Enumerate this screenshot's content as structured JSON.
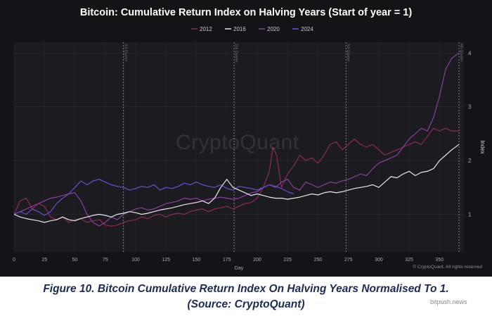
{
  "chart_data": {
    "type": "line",
    "title": "Bitcoin: Cumulative Return Index on Halving Years (Start of year = 1)",
    "xlabel": "Day",
    "ylabel": "Index",
    "xlim": [
      0,
      370
    ],
    "ylim": [
      0.3,
      4.2
    ],
    "x_ticks": [
      0,
      25,
      50,
      75,
      100,
      125,
      150,
      175,
      200,
      225,
      250,
      275,
      300,
      325,
      350
    ],
    "y_ticks": [
      1,
      2,
      3,
      4
    ],
    "grid": true,
    "legend_position": "top-center",
    "quarter_markers": [
      {
        "day": 90,
        "label": "3rd Quarter"
      },
      {
        "day": 181,
        "label": "2nd Quarter"
      },
      {
        "day": 273,
        "label": "3rd Quarter"
      },
      {
        "day": 366,
        "label": "4th Quarter"
      }
    ],
    "series": [
      {
        "name": "2012",
        "color": "#8b2a5a",
        "x": [
          0,
          5,
          10,
          15,
          20,
          25,
          30,
          35,
          40,
          45,
          50,
          55,
          60,
          65,
          70,
          75,
          80,
          85,
          90,
          95,
          100,
          105,
          110,
          115,
          120,
          125,
          130,
          135,
          140,
          145,
          150,
          155,
          160,
          165,
          170,
          175,
          180,
          185,
          190,
          195,
          200,
          205,
          210,
          213,
          216,
          220,
          225,
          230,
          235,
          240,
          245,
          250,
          255,
          260,
          265,
          270,
          275,
          280,
          285,
          290,
          295,
          300,
          305,
          310,
          315,
          320,
          325,
          330,
          335,
          340,
          345,
          350,
          355,
          360,
          366
        ],
        "y": [
          1.0,
          1.25,
          1.3,
          1.1,
          1.2,
          1.15,
          0.95,
          0.9,
          0.95,
          0.85,
          0.9,
          0.92,
          0.85,
          0.88,
          0.9,
          0.8,
          0.78,
          0.8,
          0.85,
          0.88,
          0.9,
          0.95,
          0.92,
          0.98,
          1.0,
          0.95,
          1.0,
          1.02,
          1.0,
          1.05,
          1.08,
          1.1,
          1.05,
          1.1,
          1.12,
          1.15,
          1.1,
          1.15,
          1.2,
          1.22,
          1.3,
          1.5,
          1.8,
          2.25,
          2.1,
          1.5,
          1.75,
          1.9,
          2.1,
          2.0,
          2.05,
          1.95,
          2.1,
          2.3,
          2.35,
          2.2,
          2.3,
          2.4,
          2.3,
          2.25,
          2.3,
          2.2,
          2.1,
          2.15,
          2.2,
          2.25,
          2.3,
          2.35,
          2.3,
          2.45,
          2.6,
          2.55,
          2.6,
          2.55,
          2.55
        ]
      },
      {
        "name": "2016",
        "color": "#e8e8ea",
        "x": [
          0,
          5,
          10,
          15,
          20,
          25,
          30,
          35,
          40,
          45,
          50,
          55,
          60,
          65,
          70,
          75,
          80,
          85,
          90,
          95,
          100,
          105,
          110,
          115,
          120,
          125,
          130,
          135,
          140,
          145,
          150,
          155,
          160,
          165,
          170,
          175,
          180,
          185,
          190,
          195,
          200,
          205,
          210,
          215,
          220,
          225,
          230,
          235,
          240,
          245,
          250,
          255,
          260,
          265,
          270,
          275,
          280,
          285,
          290,
          295,
          300,
          305,
          310,
          315,
          320,
          325,
          330,
          335,
          340,
          345,
          350,
          355,
          360,
          366
        ],
        "y": [
          1.0,
          0.95,
          0.92,
          0.9,
          0.88,
          0.85,
          0.88,
          0.9,
          0.95,
          0.9,
          0.88,
          0.92,
          0.95,
          0.98,
          1.0,
          0.98,
          0.95,
          1.0,
          1.02,
          1.05,
          1.03,
          1.0,
          1.02,
          1.05,
          1.08,
          1.1,
          1.12,
          1.15,
          1.18,
          1.2,
          1.22,
          1.25,
          1.2,
          1.3,
          1.5,
          1.65,
          1.5,
          1.45,
          1.4,
          1.35,
          1.38,
          1.35,
          1.32,
          1.3,
          1.3,
          1.28,
          1.3,
          1.32,
          1.35,
          1.38,
          1.36,
          1.4,
          1.42,
          1.4,
          1.42,
          1.45,
          1.48,
          1.5,
          1.52,
          1.55,
          1.5,
          1.6,
          1.7,
          1.68,
          1.75,
          1.8,
          1.72,
          1.78,
          1.8,
          1.85,
          2.0,
          2.1,
          2.2,
          2.3
        ]
      },
      {
        "name": "2020",
        "color": "#8a3f9e",
        "x": [
          0,
          5,
          10,
          15,
          20,
          25,
          30,
          35,
          40,
          45,
          50,
          55,
          60,
          65,
          70,
          75,
          80,
          85,
          90,
          95,
          100,
          105,
          110,
          115,
          120,
          125,
          130,
          135,
          140,
          145,
          150,
          155,
          160,
          165,
          170,
          175,
          180,
          185,
          190,
          195,
          200,
          205,
          210,
          215,
          220,
          225,
          230,
          235,
          240,
          245,
          250,
          255,
          260,
          265,
          270,
          275,
          280,
          285,
          290,
          295,
          300,
          305,
          310,
          315,
          320,
          325,
          330,
          335,
          340,
          345,
          350,
          355,
          360,
          366
        ],
        "y": [
          1.0,
          1.05,
          1.1,
          1.15,
          1.2,
          1.25,
          1.3,
          1.32,
          1.35,
          1.38,
          1.4,
          1.25,
          1.0,
          0.85,
          0.78,
          0.85,
          0.95,
          0.9,
          1.0,
          1.05,
          1.1,
          1.12,
          1.08,
          1.1,
          1.15,
          1.2,
          1.22,
          1.25,
          1.3,
          1.28,
          1.3,
          1.25,
          1.28,
          1.3,
          1.32,
          1.3,
          1.28,
          1.3,
          1.35,
          1.4,
          1.42,
          1.5,
          1.55,
          1.5,
          1.6,
          1.65,
          1.5,
          1.45,
          1.6,
          1.55,
          1.5,
          1.55,
          1.6,
          1.58,
          1.62,
          1.65,
          1.7,
          1.75,
          1.72,
          1.85,
          1.95,
          2.0,
          2.05,
          2.1,
          2.25,
          2.4,
          2.5,
          2.6,
          2.55,
          2.8,
          3.2,
          3.7,
          3.9,
          4.0
        ]
      },
      {
        "name": "2024",
        "color": "#6a4fd0",
        "x": [
          0,
          5,
          10,
          15,
          20,
          25,
          30,
          35,
          40,
          45,
          50,
          55,
          60,
          65,
          70,
          75,
          80,
          85,
          90,
          95,
          100,
          105,
          110,
          115,
          120,
          125,
          130,
          135,
          140,
          145,
          150,
          155,
          160,
          165,
          170,
          175,
          180,
          185,
          190,
          195,
          200,
          205,
          210,
          215,
          220,
          225,
          230
        ],
        "y": [
          1.0,
          1.05,
          1.0,
          1.1,
          1.05,
          0.98,
          1.05,
          1.2,
          1.3,
          1.38,
          1.5,
          1.62,
          1.55,
          1.62,
          1.65,
          1.6,
          1.55,
          1.52,
          1.5,
          1.45,
          1.48,
          1.52,
          1.5,
          1.55,
          1.45,
          1.5,
          1.48,
          1.52,
          1.58,
          1.55,
          1.6,
          1.55,
          1.52,
          1.5,
          1.55,
          1.48,
          1.45,
          1.52,
          1.5,
          1.48,
          1.45,
          1.5,
          1.55,
          1.52,
          1.48,
          1.42,
          1.38
        ]
      }
    ]
  },
  "watermark": "CryptoQuant",
  "copyright": "© CryptoQuant. All rights reserved",
  "caption_line1": "Figure 10.  Bitcoin Cumulative Return Index On Halving Years Normalised To 1.",
  "caption_line2": "(Source: CryptoQuant)",
  "site_mark": "bitpush.news"
}
